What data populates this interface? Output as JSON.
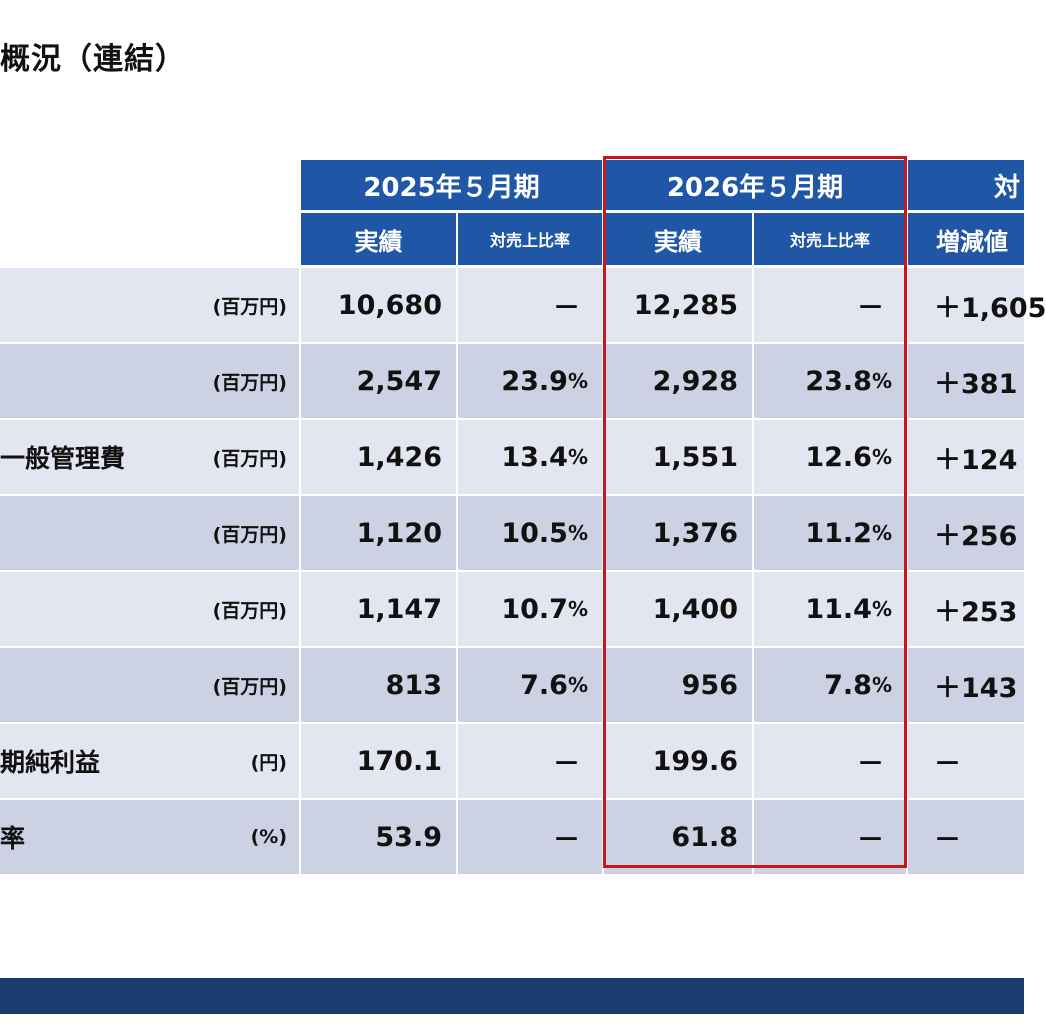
{
  "title": "概況（連結）",
  "header": {
    "period_2025": "2025年５月期",
    "period_2026": "2026年５月期",
    "comparison": "対",
    "actual_2025": "実績",
    "ratio_2025": "対売上比率",
    "actual_2026": "実績",
    "ratio_2026": "対売上比率",
    "diff": "増減値"
  },
  "rows": [
    {
      "label": "",
      "unit": "(百万円)",
      "v2025": "10,680",
      "r2025": "－",
      "v2026": "12,285",
      "r2026": "－",
      "diff": "＋1,605"
    },
    {
      "label": "",
      "unit": "(百万円)",
      "v2025": "2,547",
      "r2025": "23.9",
      "v2026": "2,928",
      "r2026": "23.8",
      "diff": "＋381"
    },
    {
      "label": "一般管理費",
      "unit": "(百万円)",
      "v2025": "1,426",
      "r2025": "13.4",
      "v2026": "1,551",
      "r2026": "12.6",
      "diff": "＋124"
    },
    {
      "label": "",
      "unit": "(百万円)",
      "v2025": "1,120",
      "r2025": "10.5",
      "v2026": "1,376",
      "r2026": "11.2",
      "diff": "＋256"
    },
    {
      "label": "",
      "unit": "(百万円)",
      "v2025": "1,147",
      "r2025": "10.7",
      "v2026": "1,400",
      "r2026": "11.4",
      "diff": "＋253"
    },
    {
      "label": "",
      "unit": "(百万円)",
      "v2025": "813",
      "r2025": "7.6",
      "v2026": "956",
      "r2026": "7.8",
      "diff": "＋143"
    },
    {
      "label": "期純利益",
      "unit": "(円)",
      "v2025": "170.1",
      "r2025": "－",
      "v2026": "199.6",
      "r2026": "－",
      "diff": "－"
    },
    {
      "label": "率",
      "unit": "(%)",
      "v2025": "53.9",
      "r2025": "－",
      "v2026": "61.8",
      "r2026": "－",
      "diff": "－"
    }
  ],
  "pct_sign": "%",
  "colors": {
    "header_blue": "#1f56a6",
    "row_light": "#e3e6f0",
    "row_dark": "#ccd1e3",
    "highlight_red": "#c8161d",
    "footer_navy": "#1b3a6d"
  }
}
